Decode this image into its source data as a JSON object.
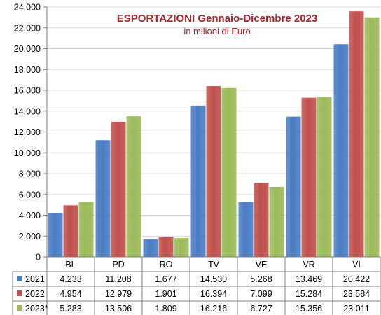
{
  "chart_data": {
    "type": "bar",
    "title": "ESPORTAZIONI Gennaio-Dicembre 2023",
    "subtitle": "in milioni di Euro",
    "categories": [
      "BL",
      "PD",
      "RO",
      "TV",
      "VE",
      "VR",
      "VI"
    ],
    "series": [
      {
        "name": "2021",
        "color": "#4a7cc4",
        "values": [
          4233,
          11208,
          1677,
          14530,
          5268,
          13469,
          20422
        ],
        "labels": [
          "4.233",
          "11.208",
          "1.677",
          "14.530",
          "5.268",
          "13.469",
          "20.422"
        ]
      },
      {
        "name": "2022",
        "color": "#c0504d",
        "values": [
          4954,
          12979,
          1901,
          16394,
          7099,
          15284,
          23584
        ],
        "labels": [
          "4.954",
          "12.979",
          "1.901",
          "16.394",
          "7.099",
          "15.284",
          "23.584"
        ]
      },
      {
        "name": "2023*",
        "color": "#9bbb59",
        "values": [
          5283,
          13506,
          1809,
          16216,
          6727,
          15356,
          23011
        ],
        "labels": [
          "5.283",
          "13.506",
          "1.809",
          "16.216",
          "6.727",
          "15.356",
          "23.011"
        ]
      }
    ],
    "ylim": [
      0,
      24000
    ],
    "yticks": [
      0,
      2000,
      4000,
      6000,
      8000,
      10000,
      12000,
      14000,
      16000,
      18000,
      20000,
      22000,
      24000
    ],
    "ytick_labels": [
      "0",
      "2.000",
      "4.000",
      "6.000",
      "8.000",
      "10.000",
      "12.000",
      "14.000",
      "16.000",
      "18.000",
      "20.000",
      "22.000",
      "24.000"
    ],
    "grid": true,
    "legend": "data-table"
  },
  "colors": {
    "title": "#a0282a",
    "gridline": "#d9d9d9",
    "axis": "#808080"
  }
}
